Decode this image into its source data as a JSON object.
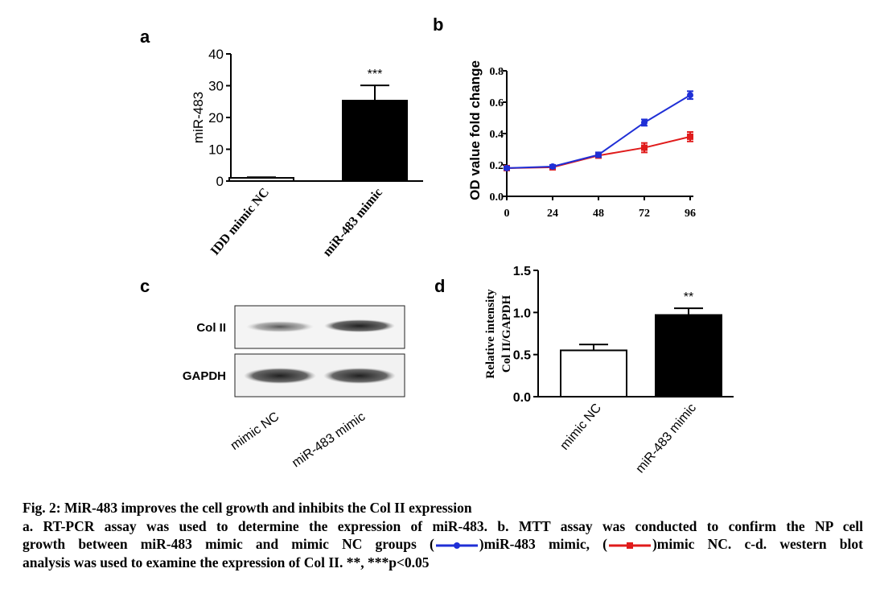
{
  "chart_data": [
    {
      "panel": "a",
      "type": "bar",
      "categories": [
        "IDD mimic NC",
        "miR-483 mimic"
      ],
      "values": [
        1.0,
        25.3
      ],
      "errors": [
        0.2,
        4.8
      ],
      "fill_colors": [
        "#ffffff",
        "#000000"
      ],
      "significance": [
        "",
        "***"
      ],
      "ylabel": "miR-483",
      "ylim": [
        0,
        40
      ],
      "yticks": [
        "0",
        "10",
        "20",
        "30",
        "40"
      ]
    },
    {
      "panel": "b",
      "type": "line",
      "x": [
        0,
        24,
        48,
        72,
        96
      ],
      "xticks": [
        "0",
        "24",
        "48",
        "72",
        "96"
      ],
      "ylabel": "OD value fold change",
      "ylim": [
        0,
        0.8
      ],
      "yticks": [
        "0.0",
        "0.2",
        "0.4",
        "0.6",
        "0.8"
      ],
      "series": [
        {
          "name": "miR-483 mimic",
          "color": "#1f2fd6",
          "marker": "circle",
          "values": [
            0.18,
            0.19,
            0.265,
            0.47,
            0.645
          ],
          "errors": [
            0.01,
            0.01,
            0.015,
            0.02,
            0.025
          ]
        },
        {
          "name": "mimic NC",
          "color": "#e01b1b",
          "marker": "square",
          "values": [
            0.18,
            0.185,
            0.26,
            0.31,
            0.38
          ],
          "errors": [
            0.01,
            0.01,
            0.015,
            0.03,
            0.03
          ]
        }
      ]
    },
    {
      "panel": "c",
      "type": "blot",
      "rows": [
        "Col II",
        "GAPDH"
      ],
      "lanes": [
        "mimic NC",
        "miR-483 mimic"
      ]
    },
    {
      "panel": "d",
      "type": "bar",
      "categories": [
        "mimic NC",
        "miR-483 mimic"
      ],
      "values": [
        0.55,
        0.97
      ],
      "errors": [
        0.07,
        0.08
      ],
      "fill_colors": [
        "#ffffff",
        "#000000"
      ],
      "significance": [
        "",
        "**"
      ],
      "ylabel_lines": [
        "Relative intensity",
        "Col II/GAPDH"
      ],
      "ylim": [
        0,
        1.5
      ],
      "yticks": [
        "0.0",
        "0.5",
        "1.0",
        "1.5"
      ]
    }
  ],
  "panel_labels": [
    "a",
    "b",
    "c",
    "d"
  ],
  "caption": {
    "title": "Fig. 2: MiR-483 improves the cell growth and inhibits the Col II expression",
    "line1": "a. RT-PCR assay was used to determine the expression of miR-483. b. MTT assay was conducted to confirm the NP cell",
    "line2_a": "growth between miR-483 mimic and mimic NC groups (",
    "line2_b": ")miR-483 mimic, (",
    "line2_c": ")mimic NC. c-d. western blot",
    "line3": "analysis was used to examine the expression of Col II. **, ***p<0.05"
  }
}
